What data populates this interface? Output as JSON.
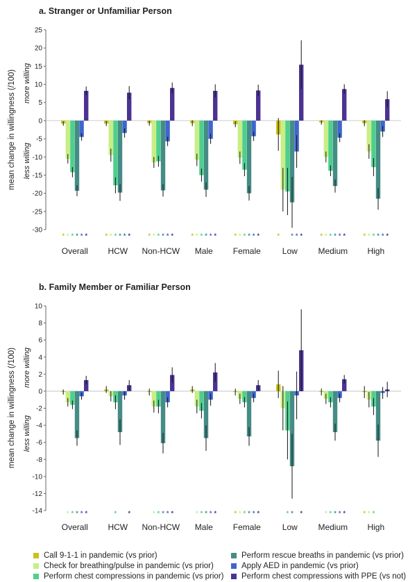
{
  "chart_data": [
    {
      "type": "bar",
      "title": "a. Stranger or Unfamiliar Person",
      "ylabel": "mean change in willingness (/100)",
      "annotation_top": "more willing",
      "annotation_bottom": "less willing",
      "ylim": [
        -30,
        25
      ],
      "yticks": [
        -30,
        -25,
        -20,
        -15,
        -10,
        -5,
        0,
        5,
        10,
        15,
        20,
        25
      ],
      "categories": [
        "Overall",
        "HCW",
        "Non-HCW",
        "Male",
        "Female",
        "Low",
        "Medium",
        "High"
      ],
      "series": [
        {
          "name": "Call 9-1-1 in pandemic (vs prior)",
          "color": "#c9c21a",
          "values": [
            -0.8,
            -0.8,
            -0.7,
            -0.7,
            -1.0,
            -3.8,
            -0.5,
            -0.7
          ],
          "errors": [
            0.6,
            0.7,
            0.7,
            0.8,
            0.8,
            4.5,
            0.6,
            0.8
          ],
          "significant": [
            true,
            true,
            true,
            true,
            true,
            true,
            true,
            true
          ]
        },
        {
          "name": "Check for breathing/pulse in pandemic (vs prior)",
          "color": "#c8ee85",
          "values": [
            -10.5,
            -9.5,
            -11.5,
            -10.8,
            -10.2,
            -19.0,
            -10.0,
            -8.5
          ],
          "errors": [
            1.3,
            1.8,
            1.5,
            1.7,
            1.7,
            6.0,
            1.5,
            2.0
          ],
          "significant": [
            true,
            true,
            true,
            true,
            true,
            false,
            true,
            true
          ]
        },
        {
          "name": "Perform chest compressions in pandemic (vs prior)",
          "color": "#4fcf8c",
          "values": [
            -14.2,
            -17.8,
            -11.2,
            -15.0,
            -13.5,
            -19.5,
            -13.8,
            -12.8
          ],
          "errors": [
            1.4,
            2.2,
            1.5,
            1.8,
            1.8,
            6.5,
            1.5,
            2.5
          ],
          "significant": [
            true,
            true,
            true,
            true,
            true,
            false,
            true,
            true
          ]
        },
        {
          "name": "Perform rescue breaths in pandemic (vs prior)",
          "color": "#458c86",
          "values": [
            -19.3,
            -19.8,
            -19.2,
            -19.0,
            -20.0,
            -22.5,
            -18.0,
            -21.5
          ],
          "errors": [
            1.5,
            2.3,
            1.7,
            2.0,
            2.0,
            7.0,
            1.8,
            3.0
          ],
          "significant": [
            true,
            true,
            true,
            true,
            true,
            true,
            true,
            true
          ]
        },
        {
          "name": "Apply AED in pandemic (vs prior)",
          "color": "#3f66cc",
          "values": [
            -4.5,
            -3.4,
            -5.7,
            -5.0,
            -4.3,
            -8.5,
            -4.7,
            -3.0
          ],
          "errors": [
            1.0,
            1.3,
            1.3,
            1.4,
            1.3,
            4.5,
            1.2,
            1.5
          ],
          "significant": [
            true,
            true,
            true,
            true,
            true,
            true,
            true,
            true
          ]
        },
        {
          "name": "Perform chest compressions with PPE (vs not)",
          "color": "#4b3392",
          "values": [
            8.2,
            7.7,
            9.0,
            8.2,
            8.3,
            15.4,
            8.7,
            5.9
          ],
          "errors": [
            1.2,
            1.8,
            1.5,
            1.8,
            1.6,
            6.7,
            1.3,
            2.2
          ],
          "significant": [
            true,
            true,
            true,
            true,
            true,
            true,
            true,
            true
          ]
        }
      ]
    },
    {
      "type": "bar",
      "title": "b. Family Member or Familiar Person",
      "ylabel": "mean change in willingness (/100)",
      "annotation_top": "more willing",
      "annotation_bottom": "less willing",
      "ylim": [
        -14,
        10
      ],
      "yticks": [
        -14,
        -12,
        -10,
        -8,
        -6,
        -4,
        -2,
        0,
        2,
        4,
        6,
        8,
        10
      ],
      "categories": [
        "Overall",
        "HCW",
        "Non-HCW",
        "Male",
        "Female",
        "Low",
        "Medium",
        "High"
      ],
      "series": [
        {
          "name": "Call 9-1-1 in pandemic (vs prior)",
          "color": "#c9c21a",
          "values": [
            -0.1,
            0.2,
            -0.1,
            0.2,
            -0.1,
            0.8,
            -0.1,
            -0.1
          ],
          "errors": [
            0.3,
            0.4,
            0.4,
            0.4,
            0.4,
            1.6,
            0.4,
            0.7
          ],
          "significant": [
            false,
            false,
            false,
            false,
            true,
            false,
            false,
            true
          ]
        },
        {
          "name": "Check for breathing/pulse in pandemic (vs prior)",
          "color": "#c8ee85",
          "values": [
            -1.3,
            -0.6,
            -1.8,
            -1.8,
            -0.9,
            -2.0,
            -0.9,
            -1.0
          ],
          "errors": [
            0.5,
            0.6,
            0.7,
            0.8,
            0.6,
            2.6,
            0.6,
            0.9
          ],
          "significant": [
            true,
            false,
            true,
            true,
            true,
            false,
            true,
            true
          ]
        },
        {
          "name": "Perform chest compressions in pandemic (vs prior)",
          "color": "#4fcf8c",
          "values": [
            -1.6,
            -1.3,
            -1.8,
            -2.3,
            -1.3,
            -4.6,
            -1.3,
            -1.8
          ],
          "errors": [
            0.5,
            0.8,
            0.8,
            0.9,
            0.6,
            3.4,
            0.6,
            1.0
          ],
          "significant": [
            true,
            true,
            true,
            true,
            true,
            true,
            true,
            true
          ]
        },
        {
          "name": "Perform rescue breaths in pandemic (vs prior)",
          "color": "#458c86",
          "values": [
            -5.5,
            -4.8,
            -6.1,
            -5.5,
            -5.3,
            -8.8,
            -4.8,
            -5.8
          ],
          "errors": [
            0.9,
            1.5,
            1.2,
            1.5,
            1.1,
            3.8,
            1.0,
            1.9
          ],
          "significant": [
            true,
            false,
            true,
            true,
            true,
            true,
            true,
            false
          ]
        },
        {
          "name": "Apply AED in pandemic (vs prior)",
          "color": "#3f66cc",
          "values": [
            -0.6,
            -0.5,
            -1.3,
            -1.0,
            -0.8,
            -0.5,
            -0.8,
            -0.2
          ],
          "errors": [
            0.4,
            0.5,
            0.6,
            0.7,
            0.5,
            2.8,
            0.5,
            0.7
          ],
          "significant": [
            true,
            false,
            true,
            true,
            true,
            false,
            true,
            false
          ]
        },
        {
          "name": "Perform chest compressions with PPE (vs not)",
          "color": "#4b3392",
          "values": [
            1.3,
            0.7,
            1.9,
            2.2,
            0.7,
            4.8,
            1.4,
            0.2
          ],
          "errors": [
            0.5,
            0.6,
            0.9,
            1.1,
            0.6,
            4.8,
            0.5,
            0.9
          ],
          "significant": [
            true,
            true,
            true,
            true,
            true,
            true,
            true,
            false
          ]
        }
      ]
    }
  ],
  "significance_marker": "*",
  "legend": {
    "items": [
      {
        "label": "Call 9-1-1 in pandemic (vs prior)",
        "color": "#c9c21a"
      },
      {
        "label": "Check for breathing/pulse in pandemic (vs prior)",
        "color": "#c8ee85"
      },
      {
        "label": "Perform chest compressions in pandemic (vs prior)",
        "color": "#4fcf8c"
      },
      {
        "label": "Perform rescue breaths in pandemic (vs prior)",
        "color": "#458c86"
      },
      {
        "label": "Apply AED in pandemic (vs prior)",
        "color": "#3f66cc"
      },
      {
        "label": "Perform chest compressions with PPE (vs not)",
        "color": "#4b3392"
      }
    ]
  }
}
